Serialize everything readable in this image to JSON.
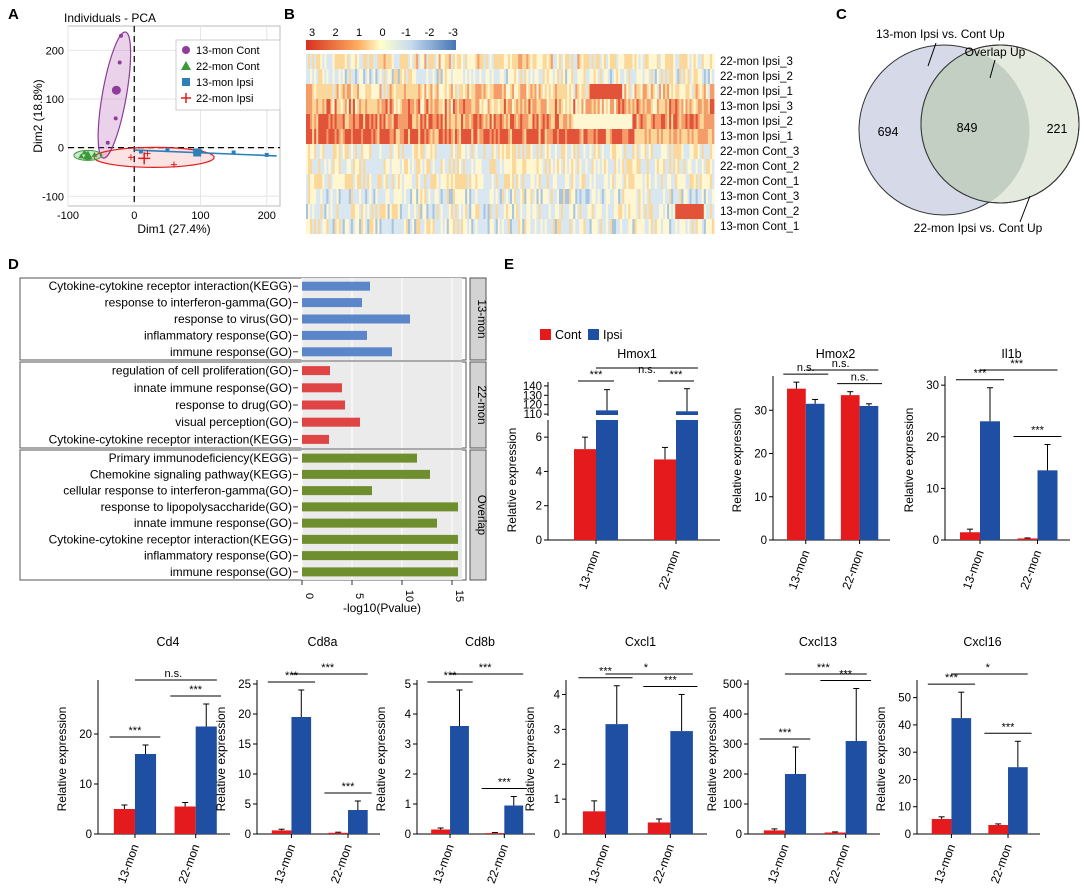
{
  "panel_labels": [
    "A",
    "B",
    "C",
    "D",
    "E"
  ],
  "colors": {
    "cont": "#e41a1c",
    "ipsi": "#1f4fa3",
    "go_13": "#5b86c9",
    "go_22": "#e04545",
    "go_overlap": "#6f8f2e",
    "venn_left": "#d5d9e8",
    "venn_right": "#dfe6d8",
    "venn_overlap": "#c3cfc3"
  },
  "chart_data": [
    {
      "id": "A",
      "type": "scatter",
      "title": "Individuals - PCA",
      "xlabel": "Dim1 (27.4%)",
      "ylabel": "Dim2 (18.8%)",
      "xlim": [
        -100,
        220
      ],
      "ylim": [
        -120,
        250
      ],
      "xticks": [
        "-100",
        "0",
        "100",
        "200"
      ],
      "yticks": [
        "-100",
        "0",
        "100",
        "200"
      ],
      "legend": [
        "13-mon Cont",
        "22-mon Cont",
        "13-mon Ipsi",
        "22-mon Ipsi"
      ],
      "series": [
        {
          "name": "13-mon Cont",
          "points": [
            [
              -28,
              60
            ],
            [
              -22,
              175
            ],
            [
              -40,
              10
            ],
            [
              -20,
              230
            ]
          ],
          "centroid": [
            -27,
            118
          ]
        },
        {
          "name": "22-mon Cont",
          "points": [
            [
              -80,
              -18
            ],
            [
              -70,
              -22
            ],
            [
              -60,
              -15
            ],
            [
              -75,
              -10
            ]
          ],
          "centroid": [
            -70,
            -16
          ]
        },
        {
          "name": "13-mon Ipsi",
          "points": [
            [
              10,
              -8
            ],
            [
              50,
              -5
            ],
            [
              100,
              -8
            ],
            [
              150,
              -10
            ],
            [
              200,
              -15
            ]
          ],
          "centroid": [
            95,
            -10
          ]
        },
        {
          "name": "22-mon Ipsi",
          "points": [
            [
              -5,
              -20
            ],
            [
              60,
              -35
            ],
            [
              20,
              -12
            ]
          ],
          "centroid": [
            15,
            -22
          ]
        }
      ]
    },
    {
      "id": "B",
      "type": "heatmap",
      "scale_ticks": [
        "3",
        "2",
        "1",
        "0",
        "-1",
        "-2",
        "-3"
      ],
      "rows": [
        "22-mon Ipsi_3",
        "22-mon Ipsi_2",
        "22-mon Ipsi_1",
        "13-mon Ipsi_3",
        "13-mon Ipsi_2",
        "13-mon Ipsi_1",
        "22-mon Cont_3",
        "22-mon Cont_2",
        "22-mon Cont_1",
        "13-mon Cont_3",
        "13-mon Cont_2",
        "13-mon Cont_1"
      ]
    },
    {
      "id": "C",
      "type": "venn",
      "sets": [
        "13-mon Ipsi vs. Cont Up",
        "22-mon Ipsi vs. Cont Up"
      ],
      "overlap_label": "Overlap Up",
      "values": {
        "left_only": "694",
        "overlap": "849",
        "right_only": "221"
      }
    },
    {
      "id": "D",
      "type": "bar",
      "xlabel": "-log10(Pvalue)",
      "xlim": [
        0,
        16
      ],
      "xticks": [
        "0",
        "5",
        "10",
        "15"
      ],
      "groups": [
        {
          "name": "13-mon",
          "terms": [
            "Cytokine-cytokine receptor interaction(KEGG)",
            "response to interferon-gamma(GO)",
            "response to virus(GO)",
            "inflammatory response(GO)",
            "immune response(GO)"
          ],
          "values": [
            6.8,
            6.0,
            10.8,
            6.5,
            9.0
          ]
        },
        {
          "name": "22-mon",
          "terms": [
            "regulation of cell proliferation(GO)",
            "innate immune response(GO)",
            "response to drug(GO)",
            "visual perception(GO)",
            "Cytokine-cytokine receptor interaction(KEGG)"
          ],
          "values": [
            2.8,
            4.0,
            4.3,
            5.8,
            2.7
          ]
        },
        {
          "name": "Overlap",
          "terms": [
            "Primary immunodeficiency(KEGG)",
            "Chemokine signaling pathway(KEGG)",
            "cellular response to interferon-gamma(GO)",
            "response to lipopolysaccharide(GO)",
            "innate immune response(GO)",
            "Cytokine-cytokine receptor interaction(KEGG)",
            "inflammatory response(GO)",
            "immune response(GO)"
          ],
          "values": [
            11.5,
            12.8,
            7.0,
            15.6,
            13.5,
            15.6,
            15.6,
            15.6
          ]
        }
      ]
    },
    {
      "id": "E",
      "type": "bar",
      "legend": [
        "Cont",
        "Ipsi"
      ],
      "ylabel": "Relative expression",
      "categories": [
        "13-mon",
        "22-mon"
      ],
      "genes": [
        {
          "name": "Hmox1",
          "broken_axis": true,
          "yticks_low": [
            "0",
            "2",
            "4",
            "6"
          ],
          "yticks_high": [
            "110",
            "120",
            "130",
            "140"
          ],
          "cont": [
            5.3,
            4.7
          ],
          "cont_err": [
            0.7,
            0.7
          ],
          "ipsi": [
            114,
            113
          ],
          "ipsi_err": [
            22,
            24
          ],
          "sig": [
            "***",
            "***"
          ],
          "between": "n.s."
        },
        {
          "name": "Hmox2",
          "ymax": 37,
          "yticks": [
            "0",
            "10",
            "20",
            "30"
          ],
          "cont": [
            35,
            33.5
          ],
          "cont_err": [
            1.5,
            0.8
          ],
          "ipsi": [
            31.5,
            31
          ],
          "ipsi_err": [
            1.0,
            0.5
          ],
          "sig": [
            "n.s.",
            "n.s."
          ],
          "between": "n.s."
        },
        {
          "name": "Il1b",
          "ymax": 31,
          "yticks": [
            "0",
            "10",
            "20",
            "30"
          ],
          "cont": [
            1.5,
            0.3
          ],
          "cont_err": [
            0.6,
            0.1
          ],
          "ipsi": [
            23,
            13.5
          ],
          "ipsi_err": [
            6.5,
            5
          ],
          "sig": [
            "***",
            "***"
          ],
          "between": "***"
        },
        {
          "name": "Cd4",
          "ymax": 30,
          "yticks": [
            "0",
            "10",
            "20"
          ],
          "cont": [
            5,
            5.5
          ],
          "cont_err": [
            0.8,
            0.8
          ],
          "ipsi": [
            16,
            21.5
          ],
          "ipsi_err": [
            1.8,
            4.5
          ],
          "sig": [
            "***",
            "***"
          ],
          "between": "n.s."
        },
        {
          "name": "Cd8a",
          "ymax": 25,
          "yticks": [
            "0",
            "5",
            "10",
            "15",
            "20",
            "25"
          ],
          "cont": [
            0.6,
            0.2
          ],
          "cont_err": [
            0.2,
            0.1
          ],
          "ipsi": [
            19.5,
            4
          ],
          "ipsi_err": [
            4.5,
            1.5
          ],
          "sig": [
            "***",
            "***"
          ],
          "between": "***"
        },
        {
          "name": "Cd8b",
          "ymax": 5,
          "yticks": [
            "0",
            "1",
            "2",
            "3",
            "4",
            "5"
          ],
          "cont": [
            0.15,
            0.03
          ],
          "cont_err": [
            0.05,
            0.02
          ],
          "ipsi": [
            3.6,
            0.95
          ],
          "ipsi_err": [
            1.2,
            0.3
          ],
          "sig": [
            "***",
            "***"
          ],
          "between": "***"
        },
        {
          "name": "Cxcl1",
          "ymax": 4.3,
          "yticks": [
            "0",
            "1",
            "2",
            "3",
            "4"
          ],
          "cont": [
            0.65,
            0.33
          ],
          "cont_err": [
            0.3,
            0.1
          ],
          "ipsi": [
            3.15,
            2.95
          ],
          "ipsi_err": [
            1.1,
            1.05
          ],
          "sig": [
            "***",
            "***"
          ],
          "between": "*"
        },
        {
          "name": "Cxcl13",
          "ymax": 500,
          "yticks": [
            "0",
            "100",
            "200",
            "300",
            "400",
            "500"
          ],
          "cont": [
            12,
            5
          ],
          "cont_err": [
            5,
            2
          ],
          "ipsi": [
            200,
            310
          ],
          "ipsi_err": [
            90,
            175
          ],
          "sig": [
            "***",
            "***"
          ],
          "between": "***"
        },
        {
          "name": "Cxcl16",
          "ymax": 55,
          "yticks": [
            "0",
            "10",
            "20",
            "30",
            "40",
            "50"
          ],
          "cont": [
            5.5,
            3.3
          ],
          "cont_err": [
            0.8,
            0.4
          ],
          "ipsi": [
            42.5,
            24.5
          ],
          "ipsi_err": [
            9.5,
            9.5
          ],
          "sig": [
            "***",
            "***"
          ],
          "between": "*"
        }
      ]
    }
  ]
}
